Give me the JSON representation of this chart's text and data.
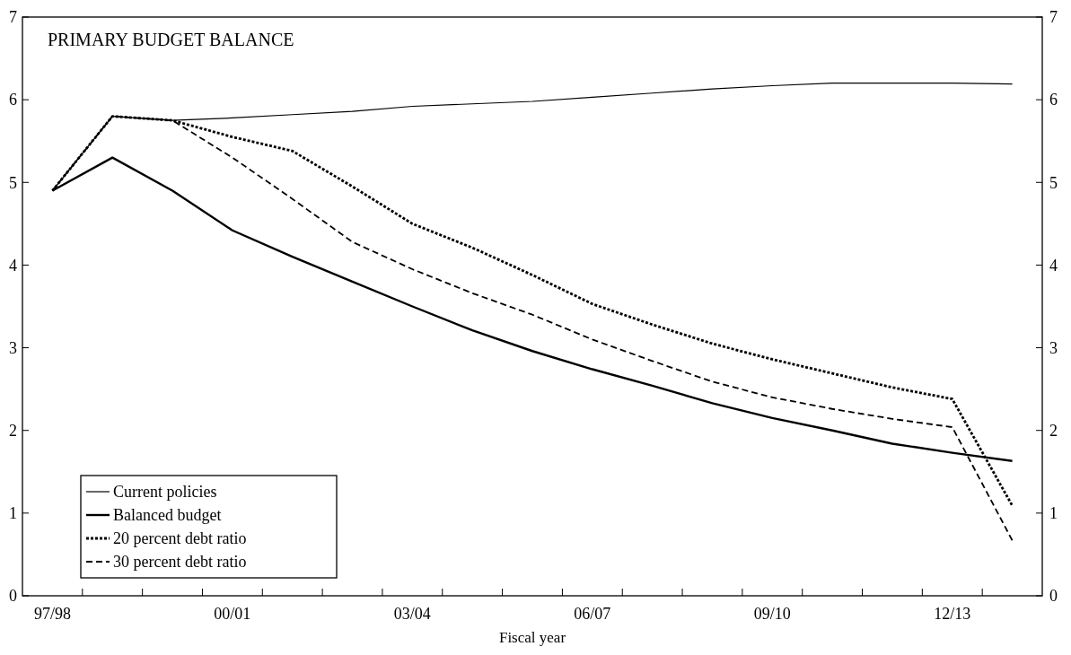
{
  "chart_data": {
    "type": "line",
    "title": "PRIMARY BUDGET BALANCE",
    "xlabel": "Fiscal year",
    "categories": [
      "97/98",
      null,
      null,
      "00/01",
      null,
      null,
      "03/04",
      null,
      null,
      "06/07",
      null,
      null,
      "09/10",
      null,
      null,
      "12/13",
      null
    ],
    "series": [
      {
        "name": "Current policies",
        "color": "#000000",
        "line_style": "solid",
        "values": [
          4.9,
          5.8,
          5.75,
          5.78,
          5.82,
          5.86,
          5.92,
          5.95,
          5.98,
          6.03,
          6.08,
          6.13,
          6.17,
          6.2,
          6.2,
          6.2,
          6.19
        ]
      },
      {
        "name": "Balanced budget",
        "color": "#000000",
        "line_style": "solid",
        "values": [
          4.9,
          5.3,
          4.9,
          4.42,
          4.1,
          3.8,
          3.5,
          3.21,
          2.96,
          2.74,
          2.54,
          2.33,
          2.15,
          2.0,
          1.84,
          1.73,
          1.63
        ]
      },
      {
        "name": "20 percent debt ratio",
        "color": "#000000",
        "line_style": "dotted",
        "values": [
          4.9,
          5.8,
          5.75,
          5.55,
          5.38,
          4.95,
          4.5,
          4.21,
          3.88,
          3.53,
          3.28,
          3.05,
          2.86,
          2.69,
          2.52,
          2.38,
          1.09
        ]
      },
      {
        "name": "30 percent debt ratio",
        "color": "#000000",
        "line_style": "dashed",
        "values": [
          4.9,
          5.8,
          5.75,
          5.3,
          4.8,
          4.28,
          3.95,
          3.66,
          3.4,
          3.1,
          2.84,
          2.59,
          2.4,
          2.26,
          2.14,
          2.04,
          0.67
        ]
      }
    ],
    "ylim": [
      0,
      7
    ],
    "yticks": [
      0,
      1,
      2,
      3,
      4,
      5,
      6,
      7
    ],
    "y2lim": [
      0,
      7
    ],
    "y2ticks": [
      0,
      1,
      2,
      3,
      4,
      5,
      6,
      7
    ],
    "legend": "bottom left",
    "grid": false
  }
}
